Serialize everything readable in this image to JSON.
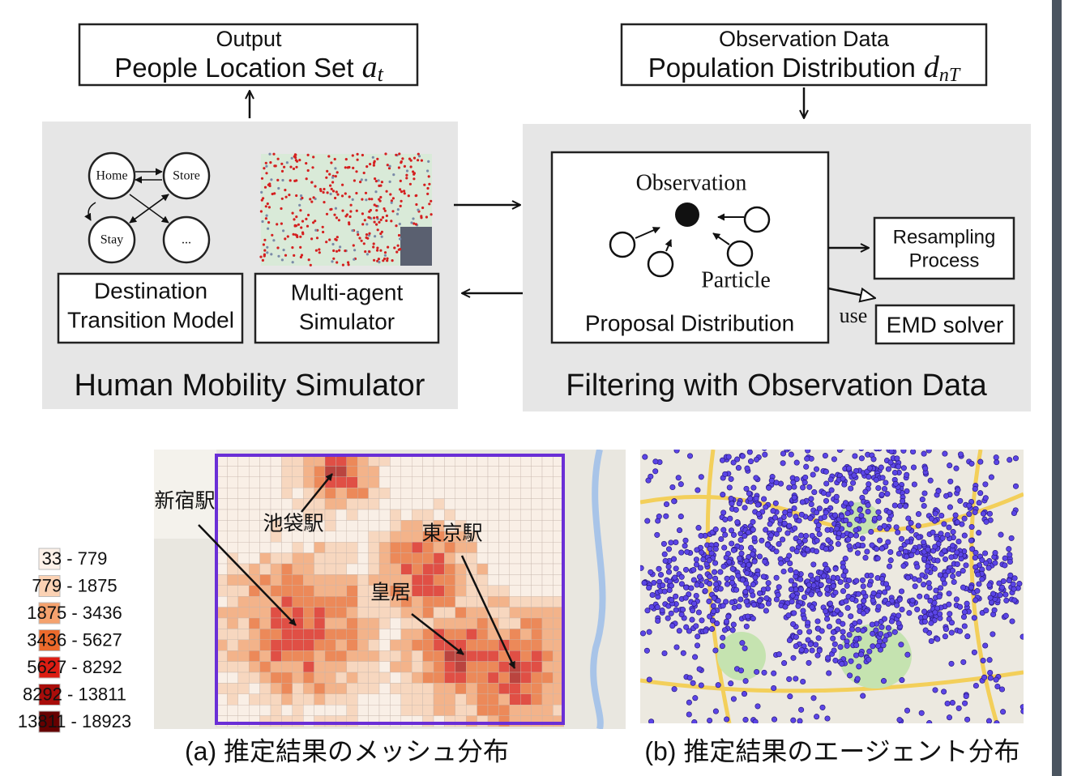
{
  "output_box": {
    "line1": "Output",
    "line2": "People Location Set",
    "math_base": "a",
    "math_sub": "t"
  },
  "observation_box": {
    "line1": "Observation Data",
    "line2": "Population Distribution",
    "math_base": "d",
    "math_sub": "nT"
  },
  "simulator_panel": {
    "title": "Human Mobility Simulator",
    "nodes": [
      "Home",
      "Store",
      "Stay",
      "..."
    ],
    "model_box": {
      "line1": "Destination",
      "line2": "Transition Model"
    },
    "simulator_box": {
      "line1": "Multi-agent",
      "line2": "Simulator"
    }
  },
  "filter_panel": {
    "title": "Filtering with Observation Data",
    "observation_label": "Observation",
    "particle_label": "Particle",
    "proposal_label": "Proposal Distribution",
    "resampling_box": {
      "line1": "Resampling",
      "line2": "Process"
    },
    "use_label": "use",
    "emd_box": "EMD solver"
  },
  "map_a": {
    "labels": [
      "新宿駅",
      "池袋駅",
      "東京駅",
      "皇居"
    ],
    "legend": [
      {
        "label": "33 - 779",
        "color": "#fdf1e8"
      },
      {
        "label": "779 - 1875",
        "color": "#fbd2b4"
      },
      {
        "label": "1875 - 3436",
        "color": "#f5a26e"
      },
      {
        "label": "3436 - 5627",
        "color": "#ec6a2c"
      },
      {
        "label": "5627 - 8292",
        "color": "#dc1c12"
      },
      {
        "label": "8292 - 13811",
        "color": "#a90d0a"
      },
      {
        "label": "13811 - 18923",
        "color": "#660000"
      }
    ],
    "caption": "(a) 推定結果のメッシュ分布"
  },
  "map_b": {
    "caption": "(b) 推定結果のエージェント分布"
  }
}
